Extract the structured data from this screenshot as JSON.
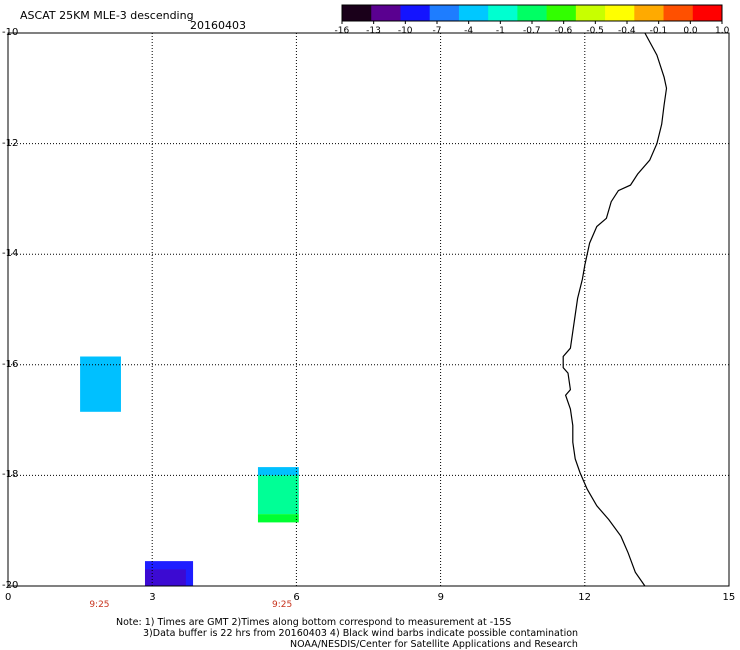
{
  "header": {
    "title": "ASCAT 25KM MLE-3 descending",
    "date": "20160403"
  },
  "colorbar": {
    "ticks": [
      "-16",
      "-13",
      "-10",
      "-7",
      "-4",
      "-1",
      "-0.7",
      "-0.6",
      "-0.5",
      "-0.4",
      "-0.1",
      "0.0",
      "1.0"
    ],
    "colors": [
      "#1a001a",
      "#5a0090",
      "#1414ff",
      "#1e7dff",
      "#00c8ff",
      "#00ffd0",
      "#00ff64",
      "#32ff00",
      "#c8ff00",
      "#ffff00",
      "#ffaa00",
      "#ff5000",
      "#ff0000"
    ]
  },
  "map": {
    "lon_range": [
      0,
      15
    ],
    "lat_range": [
      -20,
      -10
    ],
    "x_ticks": [
      "0",
      "3",
      "6",
      "9",
      "12",
      "15"
    ],
    "y_ticks": [
      "-10",
      "-12",
      "-14",
      "-16",
      "-18",
      "-20"
    ],
    "time_labels": [
      {
        "text": "9:25",
        "lon": 1.9
      },
      {
        "text": "9:25",
        "lon": 5.7
      }
    ],
    "cells": [
      {
        "name": "cell-cyan-west",
        "lon0": 1.5,
        "lon1": 2.35,
        "lat0": -16.85,
        "lat1": -15.85,
        "color": "#00c0ff"
      },
      {
        "name": "cell-cyan-top",
        "lon0": 5.2,
        "lon1": 6.05,
        "lat0": -18.0,
        "lat1": -17.85,
        "color": "#00c0ff"
      },
      {
        "name": "cell-teal",
        "lon0": 5.2,
        "lon1": 6.05,
        "lat0": -18.7,
        "lat1": -18.0,
        "color": "#00ff96"
      },
      {
        "name": "cell-green",
        "lon0": 5.2,
        "lon1": 6.05,
        "lat0": -18.85,
        "lat1": -18.7,
        "color": "#00ff32"
      },
      {
        "name": "cell-blue",
        "lon0": 2.85,
        "lon1": 3.85,
        "lat0": -20.0,
        "lat1": -19.55,
        "color": "#1e1eff"
      },
      {
        "name": "cell-indigo",
        "lon0": 2.85,
        "lon1": 3.7,
        "lat0": -20.0,
        "lat1": -19.7,
        "color": "#3c0ad2"
      }
    ],
    "coastline": [
      [
        13.25,
        -10.0
      ],
      [
        13.5,
        -10.4
      ],
      [
        13.65,
        -10.8
      ],
      [
        13.7,
        -11.0
      ],
      [
        13.65,
        -11.3
      ],
      [
        13.6,
        -11.65
      ],
      [
        13.5,
        -12.0
      ],
      [
        13.35,
        -12.3
      ],
      [
        13.1,
        -12.55
      ],
      [
        12.95,
        -12.75
      ],
      [
        12.7,
        -12.85
      ],
      [
        12.55,
        -13.05
      ],
      [
        12.45,
        -13.35
      ],
      [
        12.25,
        -13.5
      ],
      [
        12.1,
        -13.8
      ],
      [
        12.0,
        -14.2
      ],
      [
        11.95,
        -14.45
      ],
      [
        11.85,
        -14.8
      ],
      [
        11.8,
        -15.1
      ],
      [
        11.75,
        -15.4
      ],
      [
        11.7,
        -15.7
      ],
      [
        11.55,
        -15.85
      ],
      [
        11.55,
        -16.05
      ],
      [
        11.65,
        -16.15
      ],
      [
        11.7,
        -16.45
      ],
      [
        11.6,
        -16.55
      ],
      [
        11.7,
        -16.8
      ],
      [
        11.75,
        -17.1
      ],
      [
        11.75,
        -17.4
      ],
      [
        11.8,
        -17.7
      ],
      [
        11.9,
        -17.95
      ],
      [
        12.05,
        -18.25
      ],
      [
        12.25,
        -18.55
      ],
      [
        12.5,
        -18.8
      ],
      [
        12.75,
        -19.1
      ],
      [
        12.9,
        -19.4
      ],
      [
        13.05,
        -19.75
      ],
      [
        13.25,
        -20.0
      ]
    ]
  },
  "notes": {
    "line1": "Note: 1) Times are GMT 2)Times along bottom correspond to measurement at -15S",
    "line2": "3)Data buffer is 22 hrs from 20160403 4) Black wind barbs indicate possible contamination",
    "line3": "NOAA/NESDIS/Center for Satellite Applications and Research"
  }
}
